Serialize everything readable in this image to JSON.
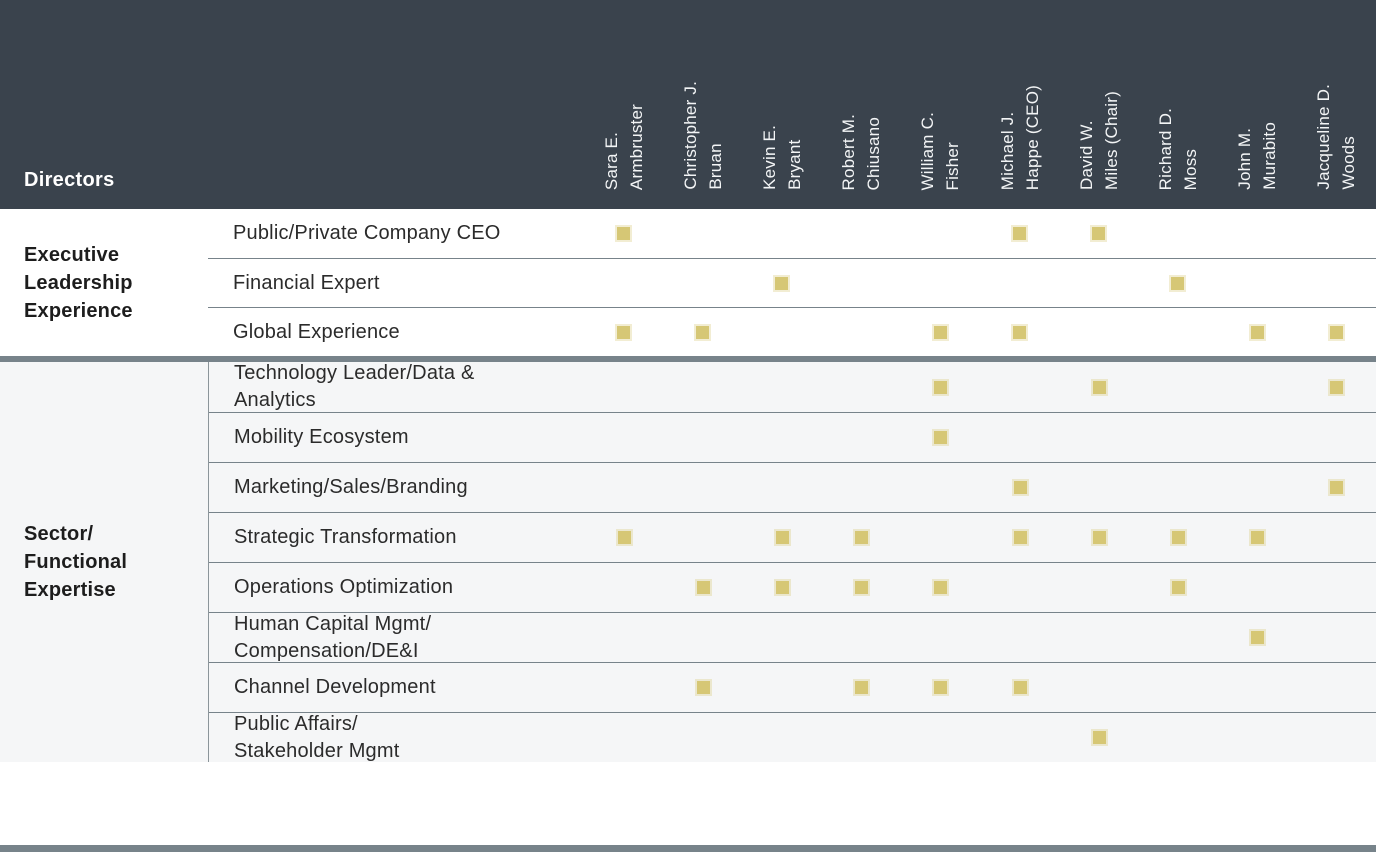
{
  "header": {
    "title": "Directors"
  },
  "colors": {
    "header_background": "#3a434d",
    "header_text": "#ffffff",
    "marker_gold": "#d6c775",
    "divider_gray": "#77838a",
    "alt_section_background": "#f5f6f7",
    "label_text": "#2b2b2b"
  },
  "chart_data": {
    "type": "table",
    "title": "Directors",
    "columns": [
      "Sara E.\nArmbruster",
      "Christopher J.\nBruan",
      "Kevin E.\nBryant",
      "Robert M.\nChiusano",
      "William C.\nFisher",
      "Michael J.\nHappe (CEO)",
      "David W.\nMiles (Chair)",
      "Richard D.\nMoss",
      "John M.\nMurabito",
      "Jacqueline D.\nWoods"
    ],
    "sections": [
      {
        "label": "Executive\nLeadership\nExperience",
        "rows": [
          {
            "label": "Public/Private Company CEO",
            "marks": [
              1,
              0,
              0,
              0,
              0,
              1,
              1,
              0,
              0,
              0
            ]
          },
          {
            "label": "Financial Expert",
            "marks": [
              0,
              0,
              1,
              0,
              0,
              0,
              0,
              1,
              0,
              0
            ]
          },
          {
            "label": "Global Experience",
            "marks": [
              1,
              1,
              0,
              0,
              1,
              1,
              0,
              0,
              1,
              1
            ]
          }
        ]
      },
      {
        "label": "Sector/\nFunctional\nExpertise",
        "rows": [
          {
            "label": "Technology Leader/Data &\nAnalytics",
            "marks": [
              0,
              0,
              0,
              0,
              1,
              0,
              1,
              0,
              0,
              1
            ]
          },
          {
            "label": "Mobility Ecosystem",
            "marks": [
              0,
              0,
              0,
              0,
              1,
              0,
              0,
              0,
              0,
              0
            ]
          },
          {
            "label": "Marketing/Sales/Branding",
            "marks": [
              0,
              0,
              0,
              0,
              0,
              1,
              0,
              0,
              0,
              1
            ]
          },
          {
            "label": "Strategic Transformation",
            "marks": [
              1,
              0,
              1,
              1,
              0,
              1,
              1,
              1,
              1,
              0
            ]
          },
          {
            "label": "Operations Optimization",
            "marks": [
              0,
              1,
              1,
              1,
              1,
              0,
              0,
              1,
              0,
              0
            ]
          },
          {
            "label": "Human Capital Mgmt/\nCompensation/DE&I",
            "marks": [
              0,
              0,
              0,
              0,
              0,
              0,
              0,
              0,
              1,
              0
            ]
          },
          {
            "label": "Channel Development",
            "marks": [
              0,
              1,
              0,
              1,
              1,
              1,
              0,
              0,
              0,
              0
            ]
          },
          {
            "label": "Public Affairs/\nStakeholder Mgmt",
            "marks": [
              0,
              0,
              0,
              0,
              0,
              0,
              1,
              0,
              0,
              0
            ]
          }
        ]
      }
    ]
  }
}
